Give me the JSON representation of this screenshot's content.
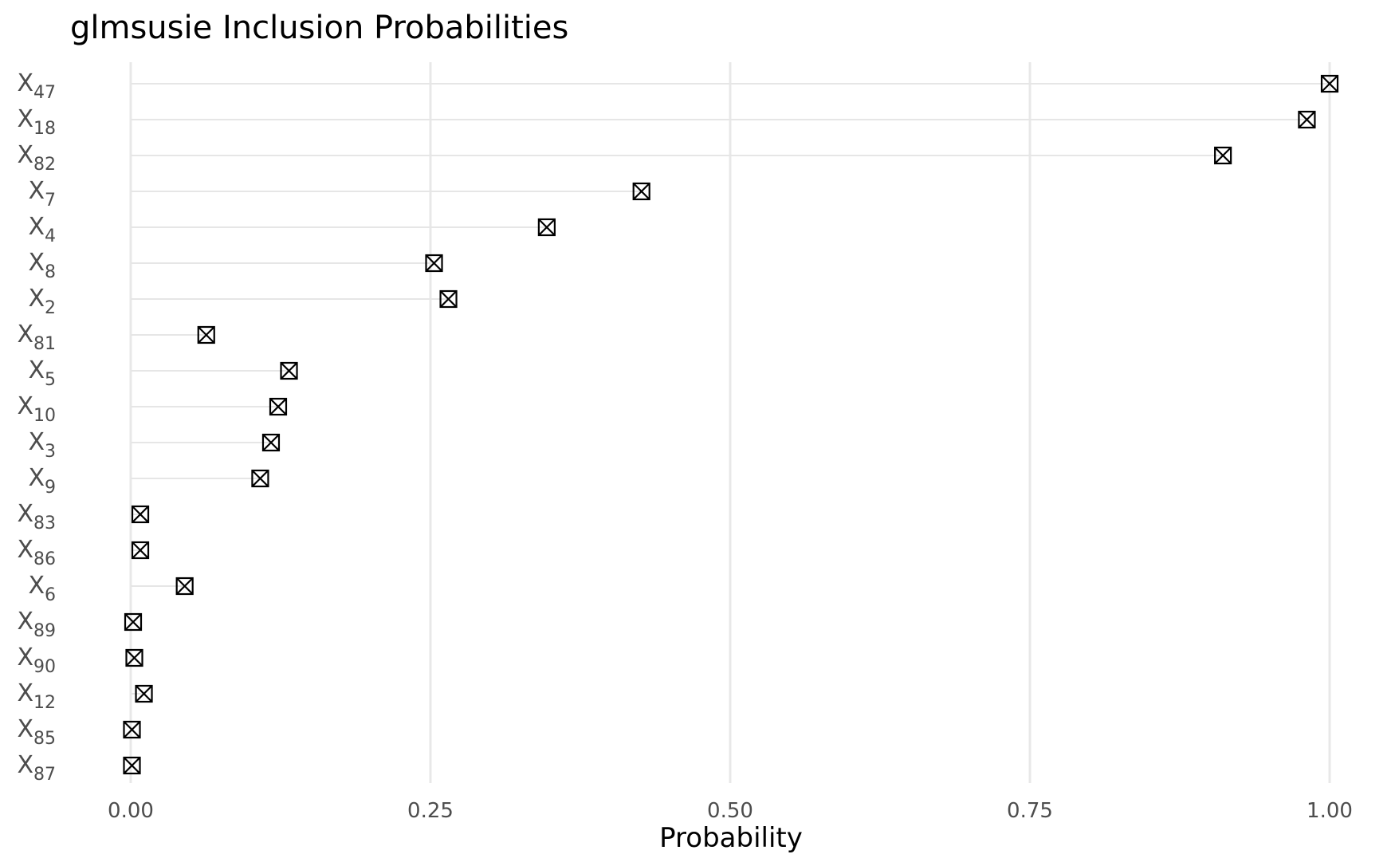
{
  "chart_data": {
    "type": "scatter",
    "title": "glmsusie Inclusion Probabilities",
    "xlabel": "Probability",
    "ylabel": "",
    "xlim": [
      0,
      1
    ],
    "xticks": [
      {
        "value": 0,
        "label": "0.00"
      },
      {
        "value": 0.25,
        "label": "0.25"
      },
      {
        "value": 0.5,
        "label": "0.50"
      },
      {
        "value": 0.75,
        "label": "0.75"
      },
      {
        "value": 1,
        "label": "1.00"
      }
    ],
    "grid": true,
    "legend": "none",
    "marker": "square-with-x",
    "points": [
      {
        "base": "X",
        "sub": "47",
        "value": 1.0
      },
      {
        "base": "X",
        "sub": "18",
        "value": 0.981
      },
      {
        "base": "X",
        "sub": "82",
        "value": 0.911
      },
      {
        "base": "X",
        "sub": "7",
        "value": 0.426
      },
      {
        "base": "X",
        "sub": "4",
        "value": 0.347
      },
      {
        "base": "X",
        "sub": "8",
        "value": 0.253
      },
      {
        "base": "X",
        "sub": "2",
        "value": 0.265
      },
      {
        "base": "X",
        "sub": "81",
        "value": 0.063
      },
      {
        "base": "X",
        "sub": "5",
        "value": 0.132
      },
      {
        "base": "X",
        "sub": "10",
        "value": 0.123
      },
      {
        "base": "X",
        "sub": "3",
        "value": 0.117
      },
      {
        "base": "X",
        "sub": "9",
        "value": 0.108
      },
      {
        "base": "X",
        "sub": "83",
        "value": 0.008
      },
      {
        "base": "X",
        "sub": "86",
        "value": 0.008
      },
      {
        "base": "X",
        "sub": "6",
        "value": 0.045
      },
      {
        "base": "X",
        "sub": "89",
        "value": 0.002
      },
      {
        "base": "X",
        "sub": "90",
        "value": 0.003
      },
      {
        "base": "X",
        "sub": "12",
        "value": 0.011
      },
      {
        "base": "X",
        "sub": "85",
        "value": 0.001
      },
      {
        "base": "X",
        "sub": "87",
        "value": 0.001
      }
    ],
    "colors": {
      "marker": "#000000",
      "grid": "#e8e8e8",
      "tick_text": "#4d4d4d",
      "background": "#ffffff"
    }
  }
}
